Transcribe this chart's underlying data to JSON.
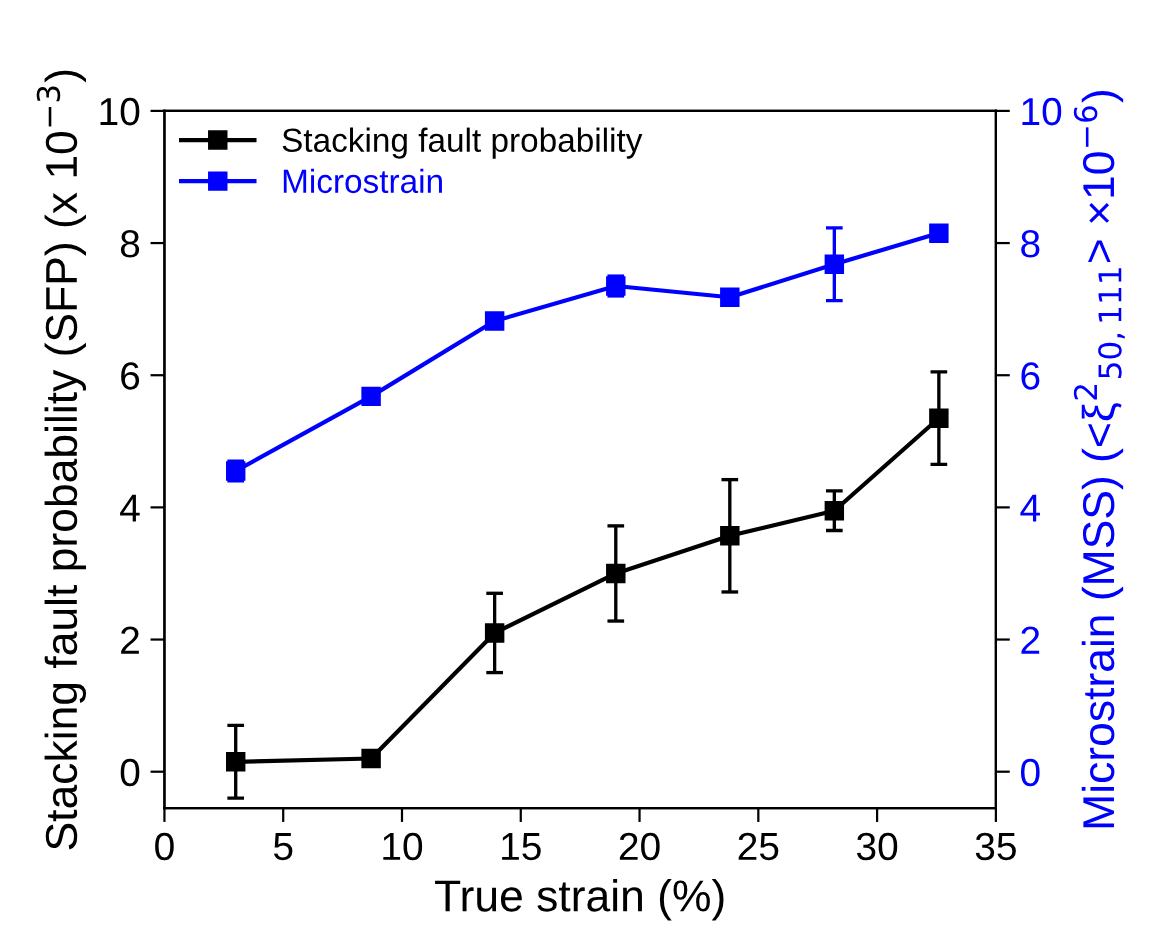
{
  "chart_data": {
    "type": "line",
    "xlabel": "True strain (%)",
    "ylabel": "Stacking fault probability (SFP) (x 10$^{−3}$)",
    "y2label": "Microstrain (MSS) (<ξ$^{2}$$_{50,111}$> ×10$^{−6}$)",
    "x": [
      3,
      8.7,
      13.9,
      19,
      23.8,
      28.2,
      32.6
    ],
    "series": [
      {
        "name": "Stacking fault probability",
        "color": "#000000",
        "values": [
          0.15,
          0.2,
          2.1,
          3.0,
          3.57,
          3.95,
          5.35
        ],
        "errors": [
          0.55,
          0.1,
          0.6,
          0.72,
          0.85,
          0.3,
          0.7
        ]
      },
      {
        "name": "Microstrain",
        "color": "#0000ff",
        "axis": "y2",
        "values": [
          4.55,
          5.68,
          6.82,
          7.35,
          7.18,
          7.68,
          8.15
        ],
        "errors": [
          0.15,
          0.05,
          0.05,
          0.15,
          0.08,
          0.55,
          0.08
        ]
      }
    ],
    "xlim": [
      0,
      35
    ],
    "xticks": [
      0,
      5,
      10,
      15,
      20,
      25,
      30,
      35
    ],
    "ylim": [
      -0.55,
      10
    ],
    "yticks": [
      0,
      2,
      4,
      6,
      8,
      10
    ],
    "y2lim": [
      -0.55,
      10
    ],
    "y2ticks": [
      0,
      2,
      4,
      6,
      8,
      10
    ],
    "marker": "square",
    "line_style": "solid",
    "grid": false,
    "legend": "top left"
  }
}
